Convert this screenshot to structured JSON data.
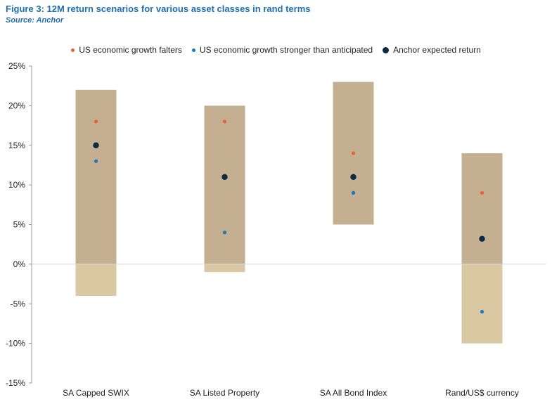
{
  "figure": {
    "title": "Figure 3: 12M return scenarios for various asset classes in rand terms",
    "source": "Source: Anchor"
  },
  "chart_data": {
    "type": "scatter",
    "categories": [
      "SA Capped SWIX",
      "SA Listed Property",
      "SA All Bond Index",
      "Rand/US$ currency"
    ],
    "ranges": [
      {
        "low": -4,
        "high": 22
      },
      {
        "low": -1,
        "high": 20
      },
      {
        "low": 5,
        "high": 23
      },
      {
        "low": -10,
        "high": 14
      }
    ],
    "series": [
      {
        "name": "US economic growth falters",
        "color": "#e8603c",
        "values": [
          18,
          18,
          14,
          9
        ]
      },
      {
        "name": "US economic growth stronger than anticipated",
        "color": "#1a7abf",
        "values": [
          13,
          4,
          9,
          -6
        ]
      },
      {
        "name": "Anchor expected return",
        "color": "#0d2a45",
        "values": [
          15,
          11,
          11,
          3.2
        ]
      }
    ],
    "range_colors": {
      "positive": "#c4b090",
      "negative": "#d9c8a2"
    },
    "yticks": [
      "25%",
      "20%",
      "15%",
      "10%",
      "5%",
      "0%",
      "-5%",
      "-10%",
      "-15%"
    ],
    "ytick_values": [
      25,
      20,
      15,
      10,
      5,
      0,
      -5,
      -10,
      -15
    ],
    "ylim": [
      -15,
      25
    ],
    "legend_position": "top",
    "grid": false
  }
}
